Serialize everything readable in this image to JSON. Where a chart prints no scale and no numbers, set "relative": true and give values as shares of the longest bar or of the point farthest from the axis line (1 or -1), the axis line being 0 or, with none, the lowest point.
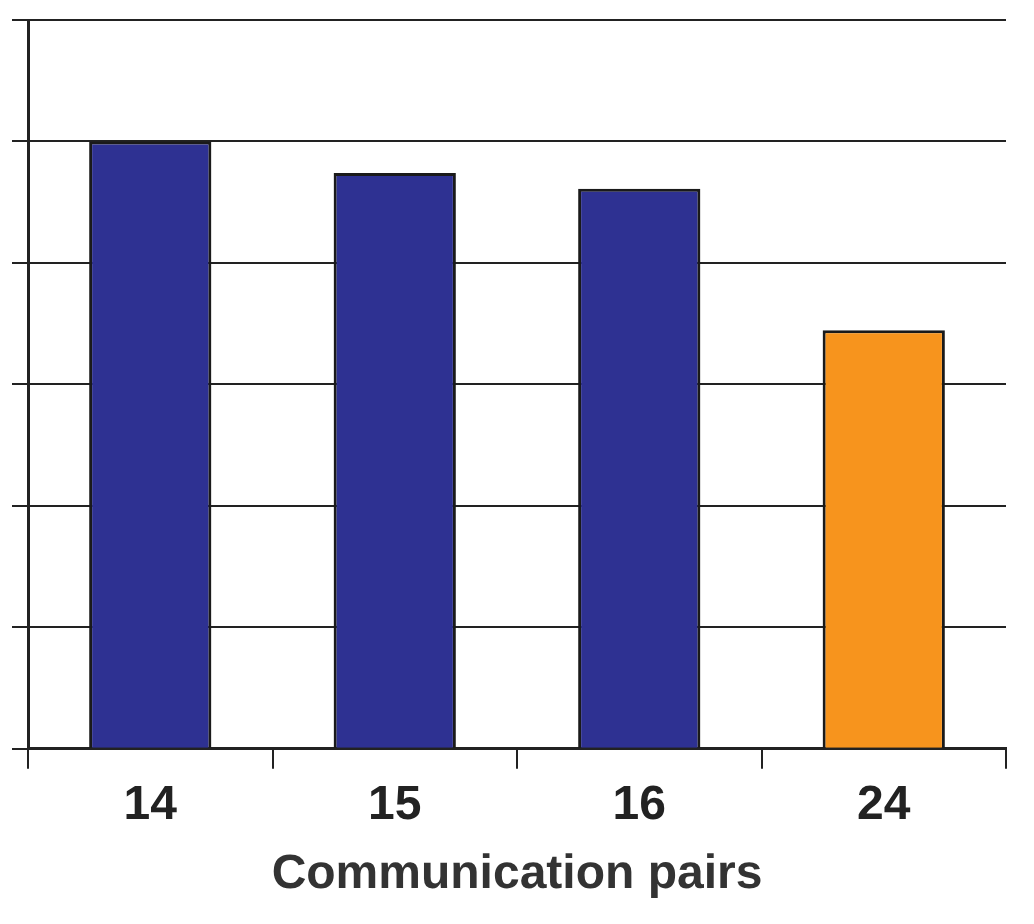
{
  "chart_data": {
    "type": "bar",
    "xlabel": "Communication pairs",
    "categories": [
      "14",
      "15",
      "16",
      "24"
    ],
    "values": [
      1,
      0.948,
      0.922,
      0.689
    ],
    "colors": [
      "#2e3192",
      "#2e3192",
      "#2e3192",
      "#f7941d"
    ],
    "relative": true,
    "grid": "y",
    "legend": false
  }
}
